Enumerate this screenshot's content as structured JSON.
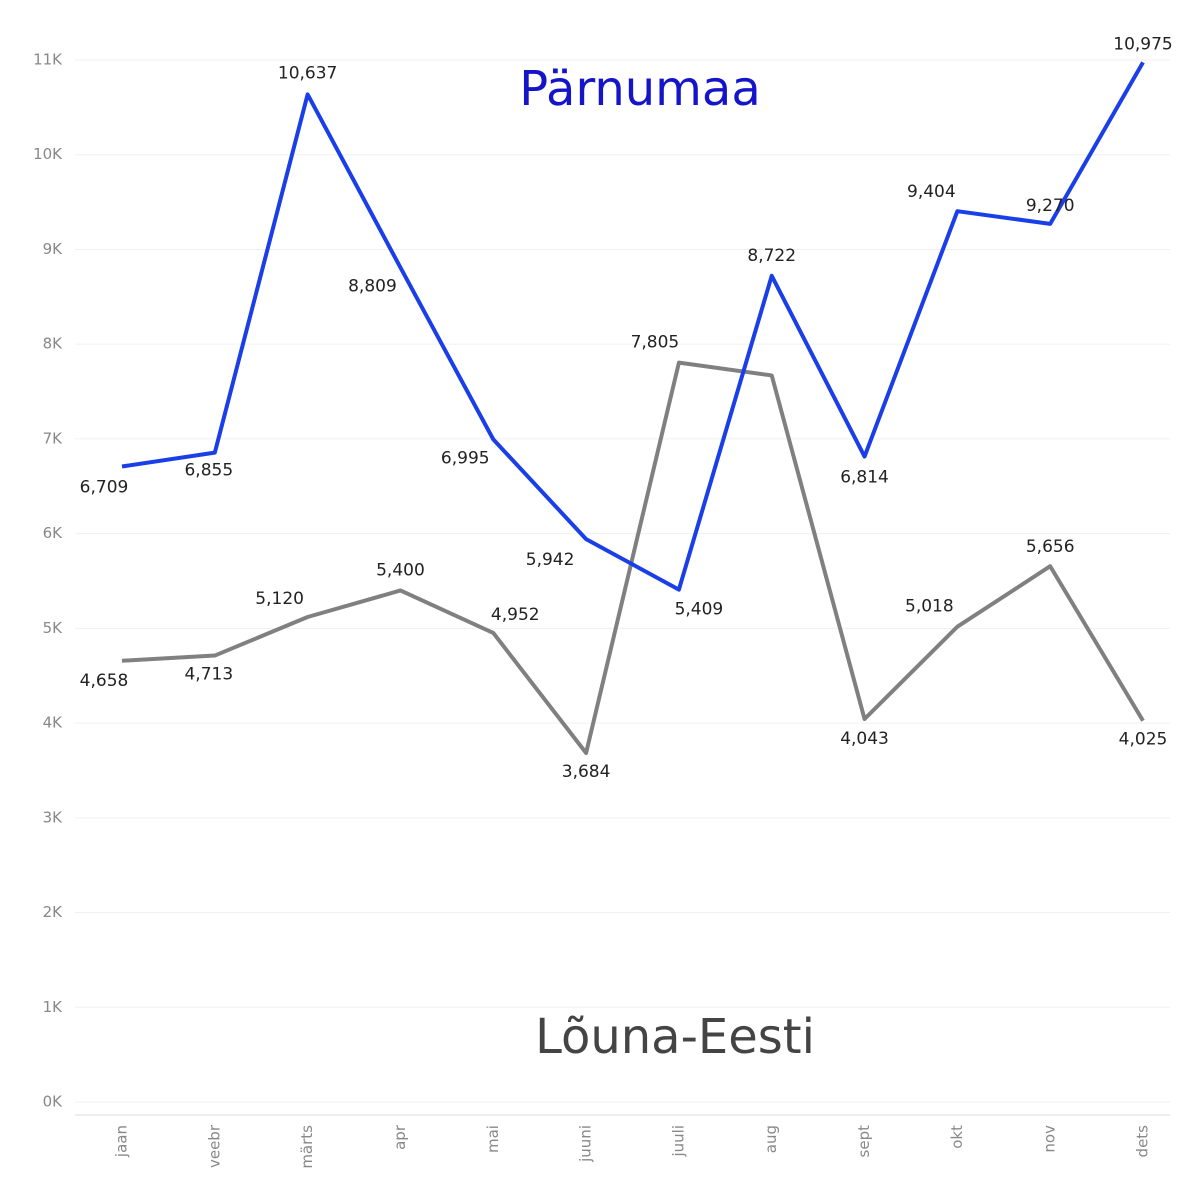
{
  "chart_data": {
    "type": "line",
    "categories": [
      "jaan",
      "veebr",
      "märts",
      "apr",
      "mai",
      "juuni",
      "juuli",
      "aug",
      "sept",
      "okt",
      "nov",
      "dets"
    ],
    "series": [
      {
        "name": "Pärnumaa",
        "color": "#1a3ee8",
        "values": [
          6709,
          6855,
          10637,
          8809,
          6995,
          5942,
          5409,
          8722,
          6814,
          9404,
          9270,
          10975
        ],
        "value_labels": [
          "6,709",
          "6,855",
          "10,637",
          "8,809",
          "6,995",
          "5,942",
          "5,409",
          "8,722",
          "6,814",
          "9,404",
          "9,270",
          "10,975"
        ]
      },
      {
        "name": "Lõuna-Eesti",
        "color": "#808080",
        "values": [
          4658,
          4713,
          5120,
          5400,
          4952,
          3684,
          7805,
          7670,
          4043,
          5018,
          5656,
          4025
        ],
        "value_labels": [
          "4,658",
          "4,713",
          "5,120",
          "5,400",
          "4,952",
          "3,684",
          "7,805",
          null,
          "4,043",
          "5,018",
          "5,656",
          "4,025"
        ]
      }
    ],
    "ylim": [
      0,
      11000
    ],
    "yticks": [
      {
        "value": 0,
        "label": "0K"
      },
      {
        "value": 1000,
        "label": "1K"
      },
      {
        "value": 2000,
        "label": "2K"
      },
      {
        "value": 3000,
        "label": "3K"
      },
      {
        "value": 4000,
        "label": "4K"
      },
      {
        "value": 5000,
        "label": "5K"
      },
      {
        "value": 6000,
        "label": "6K"
      },
      {
        "value": 7000,
        "label": "7K"
      },
      {
        "value": 8000,
        "label": "8K"
      },
      {
        "value": 9000,
        "label": "9K"
      },
      {
        "value": 10000,
        "label": "10K"
      },
      {
        "value": 11000,
        "label": "11K"
      }
    ],
    "grid": true
  }
}
